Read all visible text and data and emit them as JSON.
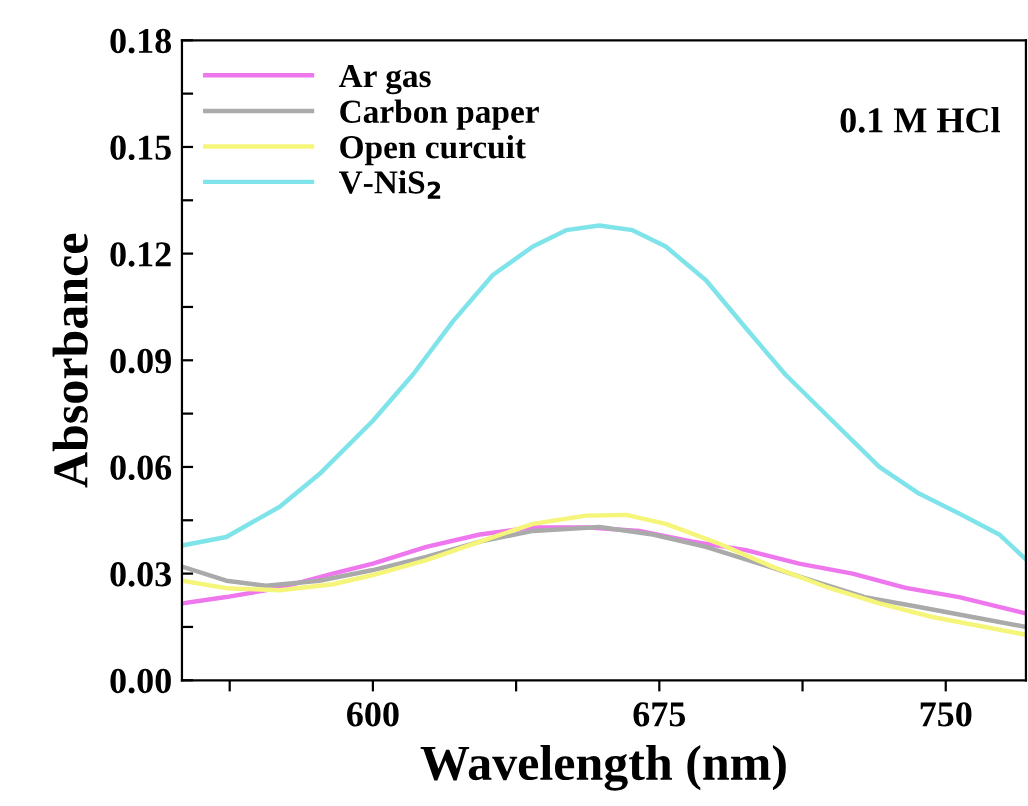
{
  "chart_data": {
    "type": "line",
    "xlabel": "Wavelength (nm)",
    "ylabel": "Absorbance",
    "annotations": [
      "0.1 M HCl"
    ],
    "xlim": [
      550,
      771
    ],
    "ylim": [
      0,
      0.18
    ],
    "xticks": [
      {
        "value": 562.5,
        "label": null
      },
      600,
      {
        "value": 637.5,
        "label": null
      },
      675,
      {
        "value": 712.5,
        "label": null
      },
      750
    ],
    "yticks": [
      {
        "value": 0,
        "label": "0.00"
      },
      {
        "value": 0.015,
        "label": null
      },
      0.03,
      {
        "value": 0.045,
        "label": null
      },
      0.06,
      {
        "value": 0.075,
        "label": null
      },
      0.09,
      {
        "value": 0.105,
        "label": null
      },
      0.12,
      {
        "value": 0.135,
        "label": null
      },
      0.15,
      {
        "value": 0.165,
        "label": null
      },
      0.18
    ],
    "grid": false,
    "legend": "top left",
    "marker": "none",
    "line_style": "solid",
    "series": [
      {
        "name": "Ar gas",
        "color": "#ee77ee",
        "x": [
          550,
          561.6,
          575.6,
          589.5,
          600,
          614,
          628,
          641.9,
          655.8,
          669.8,
          683.7,
          697.7,
          711.6,
          725.6,
          739.5,
          753.5,
          771
        ],
        "values": [
          0.0216,
          0.0234,
          0.026,
          0.03,
          0.0328,
          0.0375,
          0.041,
          0.043,
          0.043,
          0.042,
          0.039,
          0.0366,
          0.0328,
          0.03,
          0.026,
          0.0234,
          0.0188
        ]
      },
      {
        "name": "Carbon paper",
        "color": "#aaaaaa",
        "x": [
          550,
          561.6,
          572,
          586,
          600,
          614,
          628,
          641.9,
          659.3,
          673.3,
          687.2,
          701.2,
          715,
          728.8,
          743,
          757,
          771
        ],
        "values": [
          0.032,
          0.028,
          0.0266,
          0.028,
          0.031,
          0.0347,
          0.039,
          0.042,
          0.0431,
          0.041,
          0.0375,
          0.0328,
          0.028,
          0.0234,
          0.0206,
          0.0178,
          0.015
        ]
      },
      {
        "name": "Open curcuit",
        "color": "#f5f57a",
        "x": [
          550,
          561.6,
          575.6,
          589.5,
          600,
          614,
          628,
          641.9,
          655.8,
          666.3,
          676.7,
          690.7,
          704.7,
          718.6,
          732.6,
          746.5,
          771
        ],
        "values": [
          0.028,
          0.0259,
          0.0253,
          0.027,
          0.0296,
          0.0338,
          0.039,
          0.044,
          0.0463,
          0.0465,
          0.044,
          0.0384,
          0.0319,
          0.0263,
          0.0216,
          0.0178,
          0.0128
        ]
      },
      {
        "name": "V-NiS$_{2}$",
        "color": "#7fe3ea",
        "x": [
          550,
          561.6,
          575.6,
          586,
          600,
          610.5,
          621,
          631.4,
          641.9,
          650.6,
          659.3,
          668,
          676.7,
          687.2,
          697.7,
          708,
          720.3,
          732.6,
          743,
          753.5,
          764,
          771
        ],
        "values": [
          0.0379,
          0.0403,
          0.0488,
          0.058,
          0.073,
          0.086,
          0.101,
          0.114,
          0.122,
          0.1266,
          0.1279,
          0.1266,
          0.122,
          0.1125,
          0.099,
          0.086,
          0.073,
          0.06,
          0.0525,
          0.0469,
          0.041,
          0.034
        ]
      }
    ]
  }
}
